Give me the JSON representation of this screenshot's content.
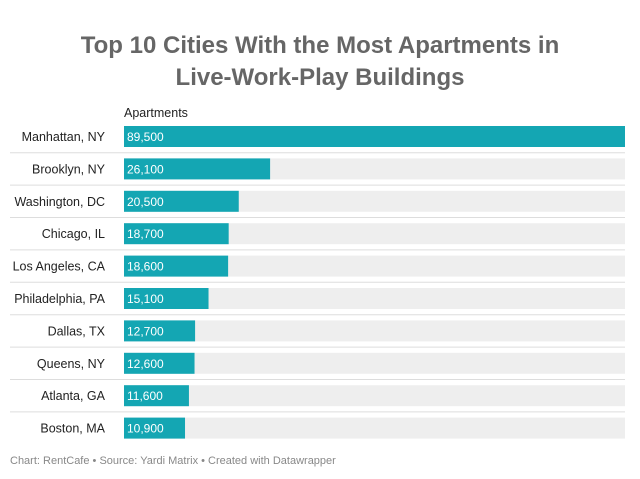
{
  "chart_data": {
    "type": "bar",
    "orientation": "horizontal",
    "title_line1": "Top 10 Cities With the Most Apartments in",
    "title_line2": "Live-Work-Play Buildings",
    "column_header": "Apartments",
    "categories": [
      "Manhattan, NY",
      "Brooklyn, NY",
      "Washington, DC",
      "Chicago, IL",
      "Los Angeles, CA",
      "Philadelphia, PA",
      "Dallas, TX",
      "Queens, NY",
      "Atlanta, GA",
      "Boston, MA"
    ],
    "values": [
      89500,
      26100,
      20500,
      18700,
      18600,
      15100,
      12700,
      12600,
      11600,
      10900
    ],
    "value_labels": [
      "89,500",
      "26,100",
      "20,500",
      "18,700",
      "18,600",
      "15,100",
      "12,700",
      "12,600",
      "11,600",
      "10,900"
    ],
    "xlim": [
      0,
      89500
    ],
    "bar_color": "#14a6b3",
    "track_color": "#eeeeee",
    "divider_color": "#dddddd"
  },
  "footer": "Chart: RentCafe • Source: Yardi Matrix • Created with Datawrapper"
}
